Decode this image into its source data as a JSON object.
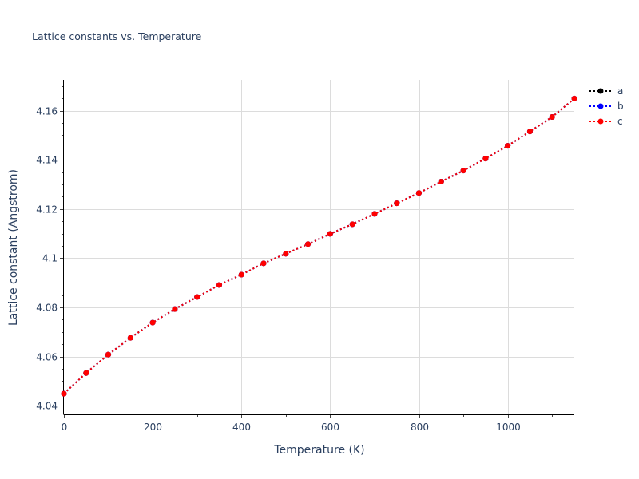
{
  "chart_data": {
    "type": "line",
    "title": "Lattice constants vs. Temperature",
    "xlabel": "Temperature (K)",
    "ylabel": "Lattice constant (Angstrom)",
    "xlim": [
      0,
      1150
    ],
    "ylim": [
      4.0365,
      4.1725
    ],
    "x_ticks": [
      0,
      200,
      400,
      600,
      800,
      1000
    ],
    "x_tick_labels": [
      "0",
      "200",
      "400",
      "600",
      "800",
      "1000"
    ],
    "y_ticks": [
      4.04,
      4.06,
      4.08,
      4.1,
      4.12,
      4.14,
      4.16
    ],
    "y_tick_labels": [
      "4.04",
      "4.06",
      "4.08",
      "4.1",
      "4.12",
      "4.14",
      "4.16"
    ],
    "grid": true,
    "legend_position": "top-right-outside",
    "x": [
      0,
      50,
      100,
      150,
      200,
      250,
      300,
      350,
      400,
      450,
      500,
      550,
      600,
      650,
      700,
      750,
      800,
      850,
      900,
      950,
      1000,
      1050,
      1100,
      1150
    ],
    "series": [
      {
        "name": "a",
        "color": "#000000",
        "line_style": "dot",
        "marker": "circle",
        "values": [
          4.0449,
          4.0533,
          4.0608,
          4.0676,
          4.0738,
          4.0793,
          4.0842,
          4.0891,
          4.0933,
          4.0979,
          4.1018,
          4.1057,
          4.1099,
          4.1138,
          4.118,
          4.1223,
          4.1265,
          4.1311,
          4.1356,
          4.1405,
          4.1457,
          4.1515,
          4.1574,
          4.1649
        ]
      },
      {
        "name": "b",
        "color": "#0000ff",
        "line_style": "dot",
        "marker": "circle",
        "values": [
          4.0449,
          4.0533,
          4.0608,
          4.0676,
          4.0738,
          4.0793,
          4.0842,
          4.0891,
          4.0933,
          4.0979,
          4.1018,
          4.1057,
          4.1099,
          4.1138,
          4.118,
          4.1223,
          4.1265,
          4.1311,
          4.1356,
          4.1405,
          4.1457,
          4.1515,
          4.1574,
          4.1649
        ]
      },
      {
        "name": "c",
        "color": "#ff0000",
        "line_style": "dot",
        "marker": "circle",
        "values": [
          4.0449,
          4.0533,
          4.0608,
          4.0676,
          4.0738,
          4.0793,
          4.0842,
          4.0891,
          4.0933,
          4.0979,
          4.1018,
          4.1057,
          4.1099,
          4.1138,
          4.118,
          4.1223,
          4.1265,
          4.1311,
          4.1356,
          4.1405,
          4.1457,
          4.1515,
          4.1574,
          4.1649
        ]
      }
    ]
  }
}
